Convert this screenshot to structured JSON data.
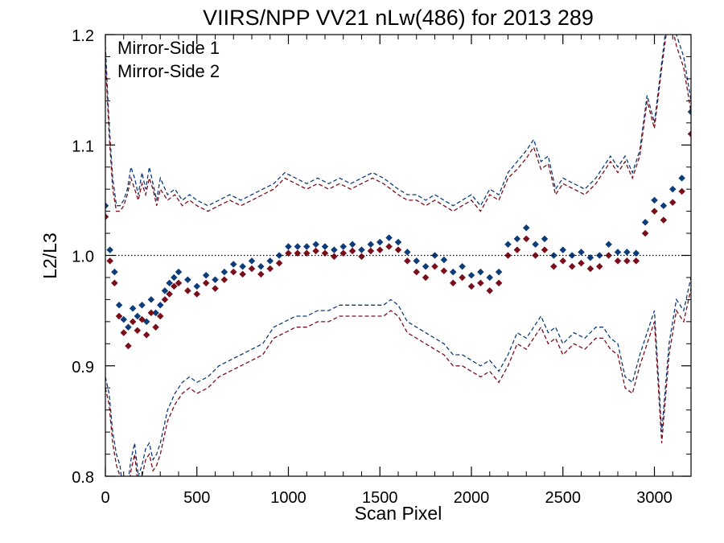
{
  "chart_data": {
    "type": "scatter",
    "title": "VIIRS/NPP VV21 nLw(486) for 2013 289",
    "xlabel": "Scan Pixel",
    "ylabel": "L2/L3",
    "xlim": [
      0,
      3200
    ],
    "ylim": [
      0.8,
      1.2
    ],
    "x_ticks": [
      0,
      500,
      1000,
      1500,
      2000,
      2500,
      3000
    ],
    "x_tick_labels": [
      "0",
      "500",
      "1000",
      "1500",
      "2000",
      "2500",
      "3000"
    ],
    "y_ticks": [
      0.8,
      0.9,
      1.0,
      1.1,
      1.2
    ],
    "y_tick_labels": [
      "0.8",
      "0.9",
      "1.0",
      "1.1",
      "1.2"
    ],
    "reference_line": {
      "y": 1.0,
      "style": "dotted",
      "color": "#000000"
    },
    "legend_position": "top-left",
    "grid": false,
    "series": [
      {
        "name": "Mirror-Side 1",
        "color": "#0d3c7a",
        "marker": "diamond",
        "x": [
          0,
          25,
          50,
          75,
          100,
          125,
          150,
          175,
          200,
          225,
          250,
          275,
          300,
          325,
          350,
          375,
          400,
          450,
          500,
          550,
          600,
          650,
          700,
          750,
          800,
          850,
          900,
          950,
          1000,
          1050,
          1100,
          1150,
          1200,
          1250,
          1300,
          1350,
          1400,
          1450,
          1500,
          1550,
          1600,
          1650,
          1700,
          1750,
          1800,
          1850,
          1900,
          1950,
          2000,
          2050,
          2100,
          2150,
          2200,
          2250,
          2300,
          2350,
          2400,
          2450,
          2500,
          2550,
          2600,
          2650,
          2700,
          2750,
          2800,
          2850,
          2900,
          2950,
          3000,
          3050,
          3100,
          3150,
          3200
        ],
        "y": [
          1.045,
          1.005,
          0.985,
          0.955,
          0.942,
          0.935,
          0.952,
          0.945,
          0.955,
          0.94,
          0.96,
          0.948,
          0.955,
          0.968,
          0.975,
          0.98,
          0.985,
          0.978,
          0.972,
          0.982,
          0.978,
          0.985,
          0.992,
          0.99,
          0.995,
          0.99,
          0.995,
          1.0,
          1.008,
          1.008,
          1.008,
          1.01,
          1.008,
          1.005,
          1.008,
          1.01,
          1.005,
          1.01,
          1.012,
          1.016,
          1.012,
          1.003,
          0.995,
          0.99,
          1.0,
          0.996,
          0.985,
          0.99,
          0.982,
          0.985,
          0.98,
          0.985,
          1.01,
          1.015,
          1.025,
          1.01,
          1.015,
          1.0,
          1.005,
          1.0,
          1.003,
          0.998,
          1.0,
          1.01,
          1.003,
          1.003,
          1.002,
          1.03,
          1.05,
          1.045,
          1.06,
          1.07,
          1.13
        ]
      },
      {
        "name": "Mirror-Side 2",
        "color": "#7a0d1a",
        "marker": "diamond",
        "x": [
          0,
          25,
          50,
          75,
          100,
          125,
          150,
          175,
          200,
          225,
          250,
          275,
          300,
          325,
          350,
          375,
          400,
          450,
          500,
          550,
          600,
          650,
          700,
          750,
          800,
          850,
          900,
          950,
          1000,
          1050,
          1100,
          1150,
          1200,
          1250,
          1300,
          1350,
          1400,
          1450,
          1500,
          1550,
          1600,
          1650,
          1700,
          1750,
          1800,
          1850,
          1900,
          1950,
          2000,
          2050,
          2100,
          2150,
          2200,
          2250,
          2300,
          2350,
          2400,
          2450,
          2500,
          2550,
          2600,
          2650,
          2700,
          2750,
          2800,
          2850,
          2900,
          2950,
          3000,
          3050,
          3100,
          3150,
          3200
        ],
        "y": [
          1.035,
          0.995,
          0.975,
          0.945,
          0.93,
          0.918,
          0.94,
          0.932,
          0.942,
          0.928,
          0.948,
          0.935,
          0.945,
          0.96,
          0.965,
          0.972,
          0.975,
          0.968,
          0.965,
          0.975,
          0.97,
          0.978,
          0.985,
          0.983,
          0.988,
          0.983,
          0.988,
          0.993,
          1.002,
          1.002,
          1.002,
          1.004,
          1.002,
          0.999,
          1.002,
          1.004,
          0.999,
          1.004,
          1.005,
          1.008,
          1.005,
          0.995,
          0.985,
          0.98,
          0.99,
          0.986,
          0.975,
          0.98,
          0.972,
          0.975,
          0.968,
          0.975,
          1.0,
          1.005,
          1.015,
          1.0,
          1.005,
          0.99,
          0.995,
          0.99,
          0.993,
          0.988,
          0.99,
          1.0,
          0.995,
          0.995,
          0.995,
          1.02,
          1.04,
          1.032,
          1.048,
          1.058,
          1.11
        ]
      }
    ],
    "envelopes": [
      {
        "series": "Mirror-Side 1",
        "style": "dashed",
        "upper": {
          "x": [
            0,
            20,
            40,
            60,
            80,
            100,
            120,
            140,
            160,
            180,
            200,
            220,
            240,
            260,
            280,
            300,
            340,
            380,
            420,
            460,
            500,
            560,
            620,
            680,
            740,
            800,
            860,
            920,
            980,
            1040,
            1100,
            1160,
            1220,
            1280,
            1340,
            1400,
            1460,
            1520,
            1560,
            1600,
            1650,
            1700,
            1750,
            1800,
            1850,
            1900,
            1950,
            2000,
            2050,
            2100,
            2150,
            2200,
            2250,
            2300,
            2340,
            2380,
            2420,
            2460,
            2500,
            2560,
            2620,
            2680,
            2720,
            2760,
            2800,
            2840,
            2880,
            2920,
            2960,
            3000,
            3040,
            3080,
            3120,
            3160,
            3200
          ],
          "y": [
            1.19,
            1.12,
            1.07,
            1.045,
            1.045,
            1.05,
            1.06,
            1.08,
            1.07,
            1.055,
            1.075,
            1.06,
            1.08,
            1.065,
            1.05,
            1.07,
            1.055,
            1.06,
            1.05,
            1.055,
            1.05,
            1.045,
            1.05,
            1.055,
            1.05,
            1.055,
            1.06,
            1.065,
            1.075,
            1.07,
            1.065,
            1.07,
            1.065,
            1.07,
            1.065,
            1.07,
            1.075,
            1.07,
            1.065,
            1.06,
            1.055,
            1.055,
            1.05,
            1.055,
            1.05,
            1.045,
            1.05,
            1.055,
            1.045,
            1.06,
            1.055,
            1.075,
            1.085,
            1.095,
            1.105,
            1.085,
            1.09,
            1.06,
            1.07,
            1.065,
            1.06,
            1.07,
            1.08,
            1.09,
            1.08,
            1.09,
            1.075,
            1.095,
            1.145,
            1.12,
            1.175,
            1.23,
            1.2,
            1.18,
            1.14
          ]
        },
        "lower": {
          "x": [
            0,
            20,
            40,
            60,
            80,
            100,
            120,
            140,
            160,
            180,
            200,
            220,
            240,
            260,
            280,
            300,
            340,
            380,
            420,
            460,
            500,
            560,
            620,
            680,
            740,
            800,
            860,
            920,
            980,
            1040,
            1100,
            1160,
            1220,
            1280,
            1340,
            1400,
            1460,
            1520,
            1560,
            1600,
            1650,
            1700,
            1750,
            1800,
            1850,
            1900,
            1950,
            2000,
            2050,
            2100,
            2150,
            2200,
            2250,
            2300,
            2340,
            2380,
            2420,
            2460,
            2500,
            2560,
            2620,
            2680,
            2720,
            2760,
            2800,
            2840,
            2880,
            2920,
            2960,
            3000,
            3040,
            3080,
            3120,
            3160,
            3200
          ],
          "y": [
            0.89,
            0.875,
            0.84,
            0.82,
            0.81,
            0.78,
            0.79,
            0.815,
            0.83,
            0.8,
            0.81,
            0.825,
            0.83,
            0.815,
            0.82,
            0.83,
            0.86,
            0.875,
            0.885,
            0.89,
            0.885,
            0.89,
            0.9,
            0.905,
            0.91,
            0.915,
            0.92,
            0.935,
            0.94,
            0.945,
            0.945,
            0.95,
            0.95,
            0.955,
            0.955,
            0.955,
            0.955,
            0.955,
            0.96,
            0.955,
            0.94,
            0.935,
            0.93,
            0.925,
            0.92,
            0.91,
            0.91,
            0.905,
            0.9,
            0.905,
            0.895,
            0.91,
            0.93,
            0.925,
            0.935,
            0.945,
            0.93,
            0.935,
            0.92,
            0.93,
            0.925,
            0.935,
            0.935,
            0.925,
            0.92,
            0.89,
            0.885,
            0.91,
            0.93,
            0.95,
            0.84,
            0.92,
            0.96,
            0.95,
            0.98
          ]
        }
      },
      {
        "series": "Mirror-Side 2",
        "style": "dashed",
        "upper": {
          "x": [
            0,
            20,
            40,
            60,
            80,
            100,
            120,
            140,
            160,
            180,
            200,
            220,
            240,
            260,
            280,
            300,
            340,
            380,
            420,
            460,
            500,
            560,
            620,
            680,
            740,
            800,
            860,
            920,
            980,
            1040,
            1100,
            1160,
            1220,
            1280,
            1340,
            1400,
            1460,
            1520,
            1560,
            1600,
            1650,
            1700,
            1750,
            1800,
            1850,
            1900,
            1950,
            2000,
            2050,
            2100,
            2150,
            2200,
            2250,
            2300,
            2340,
            2380,
            2420,
            2460,
            2500,
            2560,
            2620,
            2680,
            2720,
            2760,
            2800,
            2840,
            2880,
            2920,
            2960,
            3000,
            3040,
            3080,
            3120,
            3160,
            3200
          ],
          "y": [
            1.18,
            1.11,
            1.06,
            1.04,
            1.04,
            1.045,
            1.055,
            1.07,
            1.06,
            1.05,
            1.065,
            1.055,
            1.07,
            1.06,
            1.045,
            1.06,
            1.05,
            1.055,
            1.045,
            1.05,
            1.045,
            1.04,
            1.045,
            1.05,
            1.045,
            1.05,
            1.055,
            1.06,
            1.07,
            1.065,
            1.06,
            1.065,
            1.06,
            1.065,
            1.06,
            1.065,
            1.07,
            1.065,
            1.06,
            1.055,
            1.05,
            1.05,
            1.045,
            1.05,
            1.045,
            1.04,
            1.045,
            1.05,
            1.04,
            1.055,
            1.05,
            1.07,
            1.078,
            1.088,
            1.098,
            1.078,
            1.083,
            1.055,
            1.065,
            1.06,
            1.055,
            1.065,
            1.075,
            1.085,
            1.075,
            1.085,
            1.07,
            1.09,
            1.14,
            1.115,
            1.17,
            1.22,
            1.19,
            1.17,
            1.13
          ]
        },
        "lower": {
          "x": [
            0,
            20,
            40,
            60,
            80,
            100,
            120,
            140,
            160,
            180,
            200,
            220,
            240,
            260,
            280,
            300,
            340,
            380,
            420,
            460,
            500,
            560,
            620,
            680,
            740,
            800,
            860,
            920,
            980,
            1040,
            1100,
            1160,
            1220,
            1280,
            1340,
            1400,
            1460,
            1520,
            1560,
            1600,
            1650,
            1700,
            1750,
            1800,
            1850,
            1900,
            1950,
            2000,
            2050,
            2100,
            2150,
            2200,
            2250,
            2300,
            2340,
            2380,
            2420,
            2460,
            2500,
            2560,
            2620,
            2680,
            2720,
            2760,
            2800,
            2840,
            2880,
            2920,
            2960,
            3000,
            3040,
            3080,
            3120,
            3160,
            3200
          ],
          "y": [
            0.88,
            0.865,
            0.83,
            0.81,
            0.8,
            0.77,
            0.78,
            0.805,
            0.82,
            0.79,
            0.8,
            0.815,
            0.82,
            0.805,
            0.81,
            0.82,
            0.85,
            0.865,
            0.875,
            0.88,
            0.875,
            0.88,
            0.89,
            0.895,
            0.9,
            0.905,
            0.91,
            0.925,
            0.93,
            0.935,
            0.935,
            0.94,
            0.94,
            0.945,
            0.945,
            0.945,
            0.945,
            0.945,
            0.95,
            0.945,
            0.93,
            0.925,
            0.92,
            0.915,
            0.91,
            0.9,
            0.9,
            0.895,
            0.89,
            0.895,
            0.885,
            0.9,
            0.92,
            0.915,
            0.925,
            0.935,
            0.92,
            0.925,
            0.91,
            0.92,
            0.915,
            0.925,
            0.925,
            0.915,
            0.91,
            0.88,
            0.875,
            0.9,
            0.92,
            0.94,
            0.83,
            0.91,
            0.95,
            0.94,
            0.97
          ]
        }
      }
    ]
  }
}
